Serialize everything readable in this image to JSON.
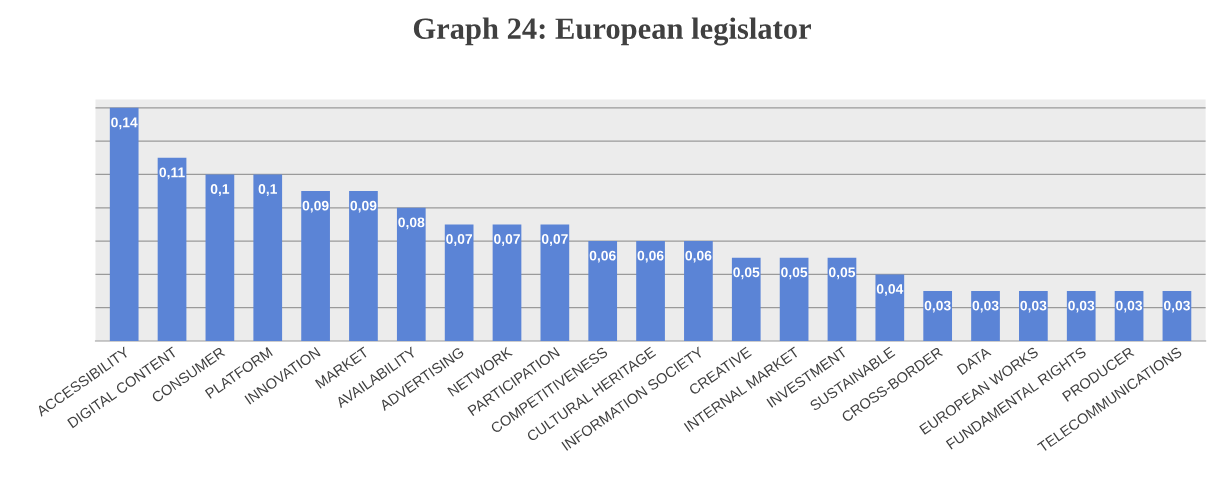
{
  "chart_data": {
    "type": "bar",
    "title": "Graph 24: European legislator",
    "categories": [
      "ACCESSIBILITY",
      "DIGITAL CONTENT",
      "CONSUMER",
      "PLATFORM",
      "INNOVATION",
      "MARKET",
      "AVAILABILITY",
      "ADVERTISING",
      "NETWORK",
      "PARTICIPATION",
      "COMPETITIVENESS",
      "CULTURAL HERITAGE",
      "INFORMATION SOCIETY",
      "CREATIVE",
      "INTERNAL MARKET",
      "INVESTMENT",
      "SUSTAINABLE",
      "CROSS-BORDER",
      "DATA",
      "EUROPEAN WORKS",
      "FUNDAMENTAL RIGHTS",
      "PRODUCER",
      "TELECOMMUNICATIONS"
    ],
    "values": [
      0.14,
      0.11,
      0.1,
      0.1,
      0.09,
      0.09,
      0.08,
      0.07,
      0.07,
      0.07,
      0.06,
      0.06,
      0.06,
      0.05,
      0.05,
      0.05,
      0.04,
      0.03,
      0.03,
      0.03,
      0.03,
      0.03,
      0.03
    ],
    "value_labels": [
      "0,14",
      "0,11",
      "0,1",
      "0,1",
      "0,09",
      "0,09",
      "0,08",
      "0,07",
      "0,07",
      "0,07",
      "0,06",
      "0,06",
      "0,06",
      "0,05",
      "0,05",
      "0,05",
      "0,04",
      "0,03",
      "0,03",
      "0,03",
      "0,03",
      "0,03",
      "0,03"
    ],
    "color": "#5b84d6",
    "ylim": [
      0,
      0.145
    ],
    "yticks": [
      {
        "value": 0.02,
        "label": null
      },
      {
        "value": 0.04,
        "label": null
      },
      {
        "value": 0.06,
        "label": null
      },
      {
        "value": 0.08,
        "label": null
      },
      {
        "value": 0.1,
        "label": null
      },
      {
        "value": 0.12,
        "label": null
      },
      {
        "value": 0.14,
        "label": null
      }
    ],
    "grid": "y",
    "tick_labels": "x"
  }
}
